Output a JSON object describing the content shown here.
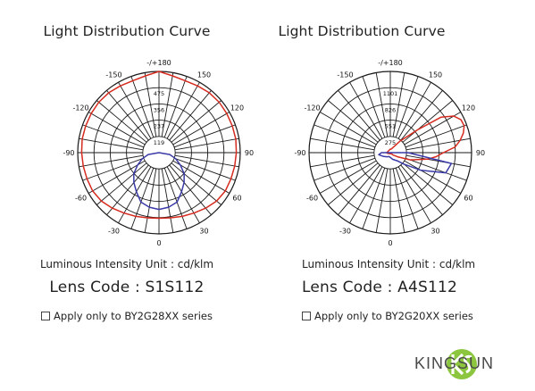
{
  "panels": [
    {
      "title": "Light Distribution Curve",
      "unit_text": "Luminous Intensity Unit : cd/klm",
      "lens_code": "Lens Code : S1S112",
      "note": "Apply only to BY2G28XX series"
    },
    {
      "title": "Light Distribution Curve",
      "unit_text": "Luminous Intensity Unit : cd/klm",
      "lens_code": "Lens Code : A4S112",
      "note": "Apply only to BY2G20XX series"
    }
  ],
  "logo": {
    "text": "KINGSUN",
    "mark_color": "#8cc63f",
    "text_color": "#4a4a4a"
  },
  "chart_data": [
    {
      "type": "polar-line",
      "title": "Light Distribution Curve",
      "angle_labels": [
        "-/+180",
        "150",
        "120",
        "90",
        "60",
        "30",
        "0",
        "-30",
        "-60",
        "-90",
        "-120",
        "-150"
      ],
      "radial_tick_labels": [
        "119",
        "237",
        "356",
        "475"
      ],
      "r_max": 594,
      "series": [
        {
          "color": "#d62b1f",
          "angles": [
            0,
            10,
            20,
            30,
            40,
            50,
            60,
            70,
            80,
            90,
            100,
            110,
            120,
            130,
            140,
            150,
            160,
            170,
            180
          ],
          "values": [
            480,
            484,
            496,
            510,
            530,
            550,
            560,
            560,
            562,
            565,
            570,
            570,
            572,
            574,
            572,
            564,
            560,
            570,
            594
          ]
        },
        {
          "color": "#3a3aa8",
          "angles": [
            0,
            10,
            20,
            30,
            40,
            50,
            60,
            70,
            80,
            90
          ],
          "values": [
            415,
            405,
            385,
            330,
            285,
            240,
            180,
            130,
            80,
            0
          ]
        }
      ]
    },
    {
      "type": "polar-line",
      "title": "Light Distribution Curve",
      "angle_labels": [
        "-/+180",
        "150",
        "120",
        "90",
        "60",
        "30",
        "0",
        "-30",
        "-60",
        "-90",
        "-120",
        "-150"
      ],
      "radial_tick_labels": [
        "275",
        "551",
        "826",
        "1101"
      ],
      "r_max": 1376,
      "series": [
        {
          "color": "#d62b1f",
          "angles": [
            -90,
            -80,
            -70,
            -60,
            -50,
            -40,
            -30,
            -20,
            -10,
            0,
            10,
            20,
            30,
            40,
            50,
            60,
            70,
            80,
            85,
            90,
            95,
            100,
            105,
            110,
            115,
            120,
            125,
            130,
            140,
            150,
            160,
            170,
            180
          ],
          "values": [
            60,
            50,
            40,
            30,
            20,
            20,
            20,
            20,
            20,
            20,
            20,
            20,
            20,
            20,
            60,
            140,
            360,
            640,
            780,
            900,
            1100,
            1200,
            1280,
            1330,
            1320,
            1240,
            1050,
            600,
            250,
            110,
            70,
            60,
            60
          ]
        },
        {
          "color": "#3a3aa8",
          "angles": [
            -90,
            -80,
            -60,
            -40,
            -20,
            0,
            20,
            40,
            50,
            60,
            70,
            80,
            90
          ],
          "values": [
            150,
            200,
            130,
            90,
            70,
            80,
            120,
            180,
            300,
            600,
            1000,
            1050,
            300
          ]
        }
      ]
    }
  ]
}
